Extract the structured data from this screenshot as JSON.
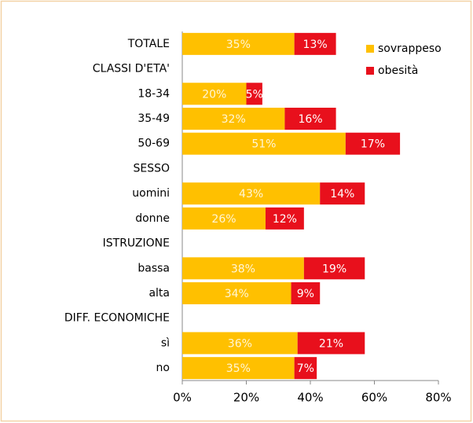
{
  "chart_data": {
    "type": "stacked-bar-horizontal",
    "categories": [
      "TOTALE",
      "CLASSI D'ETA'",
      "18-34",
      "35-49",
      "50-69",
      "SESSO",
      "uomini",
      "donne",
      "ISTRUZIONE",
      "bassa",
      "alta",
      "DIFF. ECONOMICHE",
      "sì",
      "no"
    ],
    "series": [
      {
        "name": "sovrappeso",
        "color": "#ffc000",
        "values": [
          35,
          null,
          20,
          32,
          51,
          null,
          43,
          26,
          null,
          38,
          34,
          null,
          36,
          35
        ],
        "value_labels": [
          "35%",
          null,
          "20%",
          "32%",
          "51%",
          null,
          "43%",
          "26%",
          null,
          "38%",
          "34%",
          null,
          "36%",
          "35%"
        ]
      },
      {
        "name": "obesità",
        "color": "#e8101c",
        "values": [
          13,
          null,
          5,
          16,
          17,
          null,
          14,
          12,
          null,
          19,
          9,
          null,
          21,
          7
        ],
        "value_labels": [
          "13%",
          null,
          "5%",
          "16%",
          "17%",
          null,
          "14%",
          "12%",
          null,
          "19%",
          "9%",
          null,
          "21%",
          "7%"
        ]
      }
    ],
    "xlim": [
      0,
      80
    ],
    "xticks": [
      {
        "value": 0,
        "label": "0%"
      },
      {
        "value": 20,
        "label": "20%"
      },
      {
        "value": 40,
        "label": "40%"
      },
      {
        "value": 60,
        "label": "60%"
      },
      {
        "value": 80,
        "label": "80%"
      }
    ],
    "legend": "top-right"
  }
}
